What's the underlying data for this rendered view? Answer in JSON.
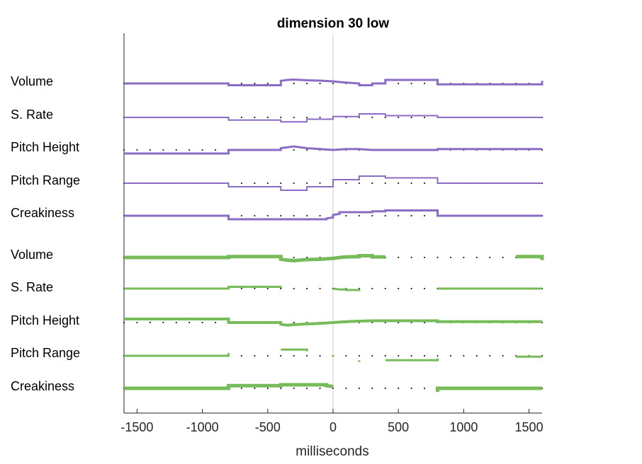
{
  "chart_data": {
    "type": "line",
    "title": "dimension 30 low",
    "xlabel": "milliseconds",
    "ylabel": "",
    "xlim": [
      -1600,
      1600
    ],
    "xticks": [
      -1500,
      -1000,
      -500,
      0,
      500,
      1000,
      1500
    ],
    "xtick_labels": [
      "-1500",
      "-1000",
      "-500",
      "0",
      "500",
      "1000",
      "1500"
    ],
    "vline_x": 0,
    "dot_spacing_ms": 100,
    "colors": {
      "purple": "#8a6cc4",
      "green": "#77bb5a",
      "dots": "#222222",
      "axis": "#262626",
      "vline": "#cccccc"
    },
    "groups": [
      {
        "color": "purple",
        "rows": [
          {
            "label": "Volume",
            "width": 3,
            "segments": [
              [
                [
                  -1600,
                  0
                ],
                [
                  -800,
                  0
                ],
                [
                  -800,
                  1
                ],
                [
                  -400,
                  1
                ],
                [
                  -400,
                  -1.5
                ],
                [
                  -350,
                  -2
                ],
                [
                  -300,
                  -2.2
                ],
                [
                  -250,
                  -2
                ],
                [
                  -200,
                  -1.8
                ],
                [
                  -100,
                  -1.6
                ],
                [
                  0,
                  -1.2
                ],
                [
                  50,
                  -0.8
                ],
                [
                  100,
                  -0.5
                ],
                [
                  200,
                  0
                ],
                [
                  200,
                  1
                ],
                [
                  300,
                  1
                ],
                [
                  300,
                  0
                ],
                [
                  400,
                  0
                ],
                [
                  400,
                  -2
                ],
                [
                  800,
                  -2
                ],
                [
                  800,
                  0.5
                ],
                [
                  1600,
                  0.5
                ],
                [
                  1600,
                  -1.5
                ]
              ]
            ]
          },
          {
            "label": "S. Rate",
            "width": 2,
            "segments": [
              [
                [
                  -1600,
                  0
                ],
                [
                  -800,
                  0
                ],
                [
                  -800,
                  1.5
                ],
                [
                  -400,
                  1.5
                ],
                [
                  -400,
                  2.5
                ],
                [
                  -200,
                  2.5
                ],
                [
                  -200,
                  1
                ],
                [
                  0,
                  1
                ],
                [
                  0,
                  -0.5
                ],
                [
                  200,
                  -0.5
                ],
                [
                  200,
                  -2
                ],
                [
                  400,
                  -2
                ],
                [
                  400,
                  -1
                ],
                [
                  800,
                  -1
                ],
                [
                  800,
                  0
                ],
                [
                  1600,
                  0
                ]
              ]
            ]
          },
          {
            "label": "Pitch Height",
            "width": 3,
            "segments": [
              [
                [
                  -1600,
                  2
                ],
                [
                  -800,
                  2
                ],
                [
                  -800,
                  0
                ],
                [
                  -400,
                  0
                ],
                [
                  -400,
                  -1
                ],
                [
                  -350,
                  -1.5
                ],
                [
                  -300,
                  -2
                ],
                [
                  -250,
                  -1.5
                ],
                [
                  -200,
                  -1
                ],
                [
                  -100,
                  -0.5
                ],
                [
                  0,
                  0
                ],
                [
                  100,
                  -0.5
                ],
                [
                  200,
                  -0.5
                ],
                [
                  300,
                  0
                ],
                [
                  400,
                  0
                ],
                [
                  800,
                  0
                ],
                [
                  800,
                  -0.5
                ],
                [
                  1600,
                  -0.5
                ]
              ]
            ]
          },
          {
            "label": "Pitch Range",
            "width": 2,
            "segments": [
              [
                [
                  -1600,
                  0
                ],
                [
                  -800,
                  0
                ],
                [
                  -800,
                  2
                ],
                [
                  -400,
                  2
                ],
                [
                  -400,
                  4
                ],
                [
                  -200,
                  4
                ],
                [
                  -200,
                  2
                ],
                [
                  0,
                  2
                ],
                [
                  0,
                  -2
                ],
                [
                  200,
                  -2
                ],
                [
                  200,
                  -4
                ],
                [
                  400,
                  -4
                ],
                [
                  400,
                  -3
                ],
                [
                  800,
                  -3
                ],
                [
                  800,
                  0
                ],
                [
                  1600,
                  0
                ]
              ]
            ]
          },
          {
            "label": "Creakiness",
            "width": 3,
            "segments": [
              [
                [
                  -1600,
                  0
                ],
                [
                  -800,
                  0
                ],
                [
                  -800,
                  2
                ],
                [
                  -50,
                  2
                ],
                [
                  -50,
                  1.5
                ],
                [
                  0,
                  1
                ],
                [
                  0,
                  -0.5
                ],
                [
                  50,
                  -1
                ],
                [
                  50,
                  -2
                ],
                [
                  300,
                  -2
                ],
                [
                  300,
                  -2.5
                ],
                [
                  400,
                  -2.5
                ],
                [
                  400,
                  -3
                ],
                [
                  800,
                  -3
                ],
                [
                  800,
                  0
                ],
                [
                  1600,
                  0
                ]
              ]
            ]
          }
        ]
      },
      {
        "color": "green",
        "rows": [
          {
            "label": "Volume",
            "width": 5,
            "segments": [
              [
                [
                  -1600,
                  0
                ],
                [
                  -800,
                  0
                ],
                [
                  -800,
                  -0.5
                ],
                [
                  -400,
                  -0.5
                ],
                [
                  -400,
                  1
                ],
                [
                  -350,
                  1.5
                ],
                [
                  -300,
                  1.8
                ],
                [
                  -250,
                  1.5
                ],
                [
                  -200,
                  1.2
                ],
                [
                  -100,
                  1
                ],
                [
                  0,
                  0.5
                ],
                [
                  50,
                  0
                ],
                [
                  100,
                  -0.3
                ],
                [
                  200,
                  -0.5
                ],
                [
                  200,
                  -1
                ],
                [
                  300,
                  -1
                ],
                [
                  300,
                  -0.3
                ],
                [
                  400,
                  -0.3
                ]
              ],
              [
                [
                  1400,
                  -0.5
                ],
                [
                  1600,
                  -0.5
                ],
                [
                  1600,
                  1.5
                ]
              ]
            ]
          },
          {
            "label": "S. Rate",
            "width": 3,
            "segments": [
              [
                [
                  -1600,
                  0
                ],
                [
                  -800,
                  0
                ],
                [
                  -800,
                  -1
                ],
                [
                  -400,
                  -1
                ],
                [
                  -400,
                  -1.5
                ]
              ],
              [
                [
                  0,
                  0
                ],
                [
                  50,
                  0.5
                ],
                [
                  100,
                  0.5
                ],
                [
                  100,
                  0.8
                ],
                [
                  200,
                  0.8
                ],
                [
                  200,
                  1.5
                ]
              ],
              [
                [
                  800,
                  0
                ],
                [
                  1600,
                  0
                ]
              ]
            ]
          },
          {
            "label": "Pitch Height",
            "width": 4,
            "segments": [
              [
                [
                  -1600,
                  -2
                ],
                [
                  -800,
                  -2
                ],
                [
                  -800,
                  0
                ],
                [
                  -400,
                  0
                ],
                [
                  -400,
                  1
                ],
                [
                  -350,
                  1.5
                ],
                [
                  -300,
                  1.2
                ],
                [
                  -250,
                  1
                ],
                [
                  -200,
                  0.8
                ],
                [
                  -100,
                  0.5
                ],
                [
                  0,
                  0
                ],
                [
                  100,
                  -0.5
                ],
                [
                  200,
                  -0.8
                ],
                [
                  300,
                  -1
                ],
                [
                  400,
                  -1
                ],
                [
                  800,
                  -1
                ],
                [
                  800,
                  -0.5
                ],
                [
                  1600,
                  -0.5
                ]
              ]
            ]
          },
          {
            "label": "Pitch Range",
            "width": 3,
            "segments": [
              [
                [
                  -1600,
                  0
                ],
                [
                  -800,
                  0
                ],
                [
                  -800,
                  -1.5
                ]
              ],
              [
                [
                  -400,
                  -3.5
                ],
                [
                  -200,
                  -3.5
                ],
                [
                  -200,
                  -2.5
                ]
              ],
              [
                [
                  0,
                  -0.5
                ],
                [
                  0,
                  0.5
                ]
              ],
              [
                [
                  200,
                  2.5
                ],
                [
                  200,
                  3.5
                ]
              ],
              [
                [
                  400,
                  2.5
                ],
                [
                  800,
                  2.5
                ],
                [
                  800,
                  1.5
                ]
              ],
              [
                [
                  1400,
                  0.5
                ],
                [
                  1600,
                  0.5
                ]
              ]
            ]
          },
          {
            "label": "Creakiness",
            "width": 5,
            "segments": [
              [
                [
                  -1600,
                  0
                ],
                [
                  -800,
                  0
                ],
                [
                  -800,
                  -1.5
                ],
                [
                  -400,
                  -1.5
                ],
                [
                  -400,
                  -2
                ],
                [
                  -50,
                  -2
                ],
                [
                  -50,
                  -1.5
                ],
                [
                  0,
                  -1
                ]
              ],
              [
                [
                  800,
                  2
                ],
                [
                  800,
                  0
                ],
                [
                  1600,
                  0
                ]
              ]
            ]
          }
        ]
      }
    ]
  }
}
